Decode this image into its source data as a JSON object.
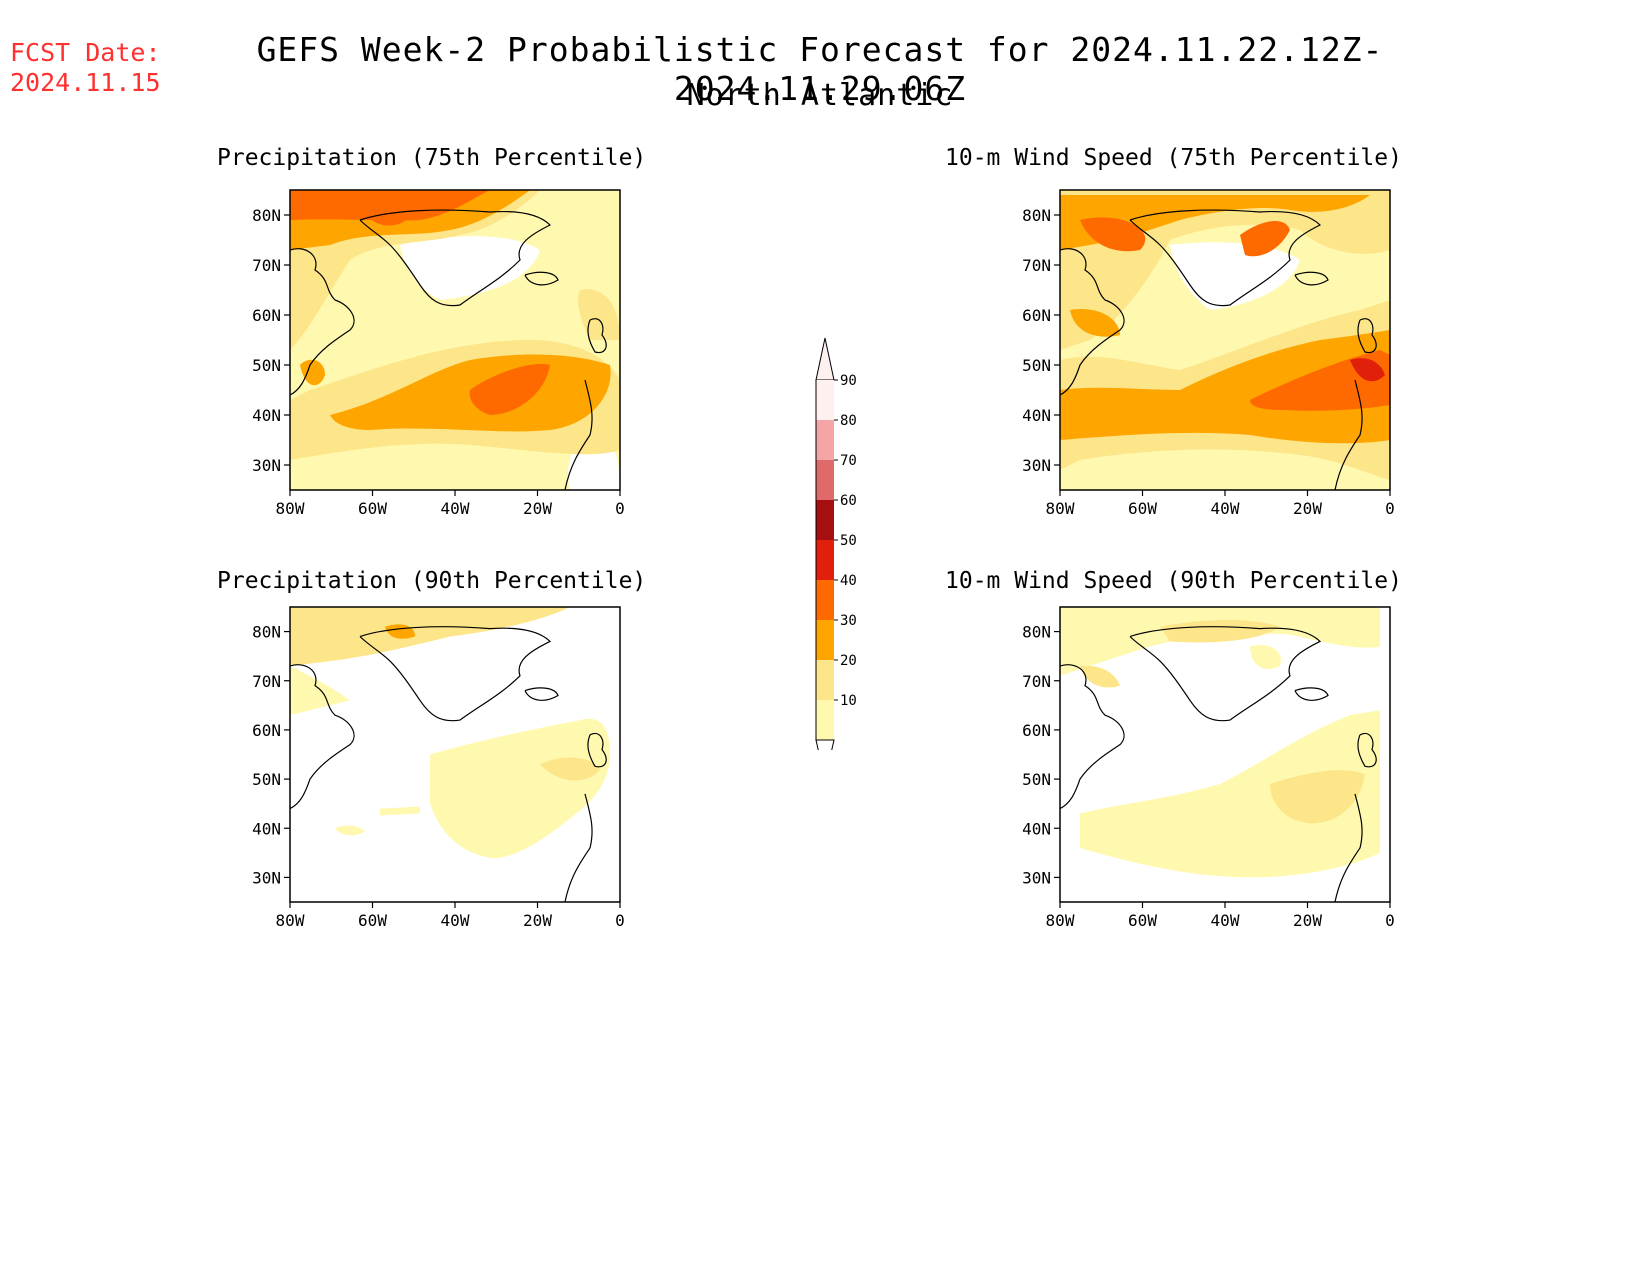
{
  "header": {
    "fcst_line1": "FCST Date:",
    "fcst_line2": "2024.11.15",
    "title": "GEFS Week-2 Probabilistic Forecast for 2024.11.22.12Z-2024.11.29.06Z",
    "subtitle": "North Atlantic"
  },
  "panels": [
    {
      "title": "Precipitation (75th Percentile)"
    },
    {
      "title": "10-m Wind Speed (75th Percentile)"
    },
    {
      "title": "Precipitation (90th Percentile)"
    },
    {
      "title": "10-m Wind Speed (90th Percentile)"
    }
  ],
  "axes": {
    "lat_labels": [
      "80N",
      "70N",
      "60N",
      "50N",
      "40N",
      "30N"
    ],
    "lon_labels": [
      "80W",
      "60W",
      "40W",
      "20W",
      "0"
    ]
  },
  "colorbar": {
    "labels": [
      "90",
      "80",
      "70",
      "60",
      "50",
      "40",
      "30",
      "20",
      "10"
    ],
    "colors": [
      "#fff0f0",
      "#f4a6a6",
      "#e06a6a",
      "#a50f0f",
      "#e0200a",
      "#ff6a00",
      "#ffa500",
      "#fde68a",
      "#fff9b0"
    ]
  },
  "palette": {
    "c10": "#fff9b0",
    "c20": "#fde68a",
    "c30": "#ffa500",
    "c40": "#ff6a00",
    "c50": "#e0200a",
    "coast": "#000000",
    "fcst_color": "#ff3030"
  }
}
